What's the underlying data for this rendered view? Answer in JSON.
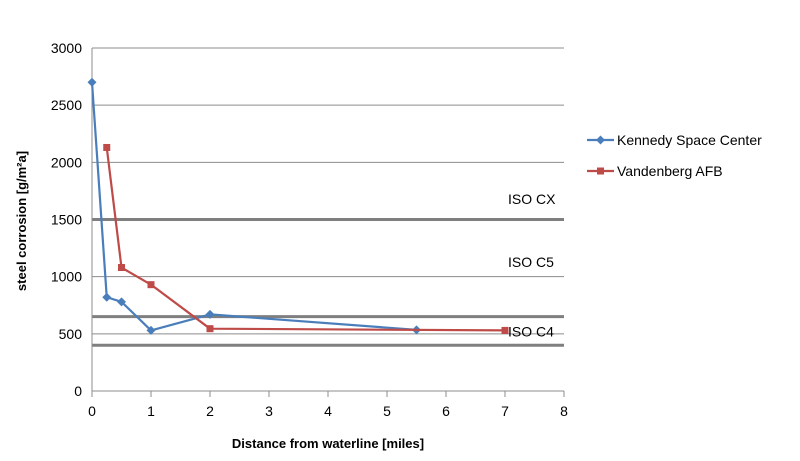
{
  "chart_data": {
    "type": "line",
    "xlabel": "Distance from waterline [miles]",
    "ylabel": "steel corrosion [g/m²a]",
    "xlim": [
      0,
      8
    ],
    "ylim": [
      0,
      3000
    ],
    "x_ticks": [
      "0",
      "1",
      "2",
      "3",
      "4",
      "5",
      "6",
      "7",
      "8"
    ],
    "y_ticks": [
      "0",
      "500",
      "1000",
      "1500",
      "2000",
      "2500",
      "3000"
    ],
    "grid": "horizontal",
    "legend_position": "right",
    "series": [
      {
        "name": "Kennedy Space Center",
        "color": "#4A7EBB",
        "marker": "diamond",
        "x": [
          0,
          0.25,
          0.5,
          1,
          2,
          5.5
        ],
        "y": [
          2700,
          820,
          780,
          530,
          670,
          535
        ]
      },
      {
        "name": "Vandenberg AFB",
        "color": "#BE4B48",
        "marker": "square",
        "x": [
          0.25,
          0.5,
          1,
          2,
          7
        ],
        "y": [
          2130,
          1080,
          930,
          545,
          530
        ]
      }
    ],
    "reference_lines": [
      {
        "y": 1500,
        "color": "#7F7F7F"
      },
      {
        "y": 650,
        "color": "#7F7F7F"
      },
      {
        "y": 400,
        "color": "#7F7F7F"
      }
    ],
    "band_labels": [
      {
        "label": "ISO CX",
        "y": 1680
      },
      {
        "label": "ISO C5",
        "y": 1130
      },
      {
        "label": "ISO C4",
        "y": 520
      }
    ]
  }
}
